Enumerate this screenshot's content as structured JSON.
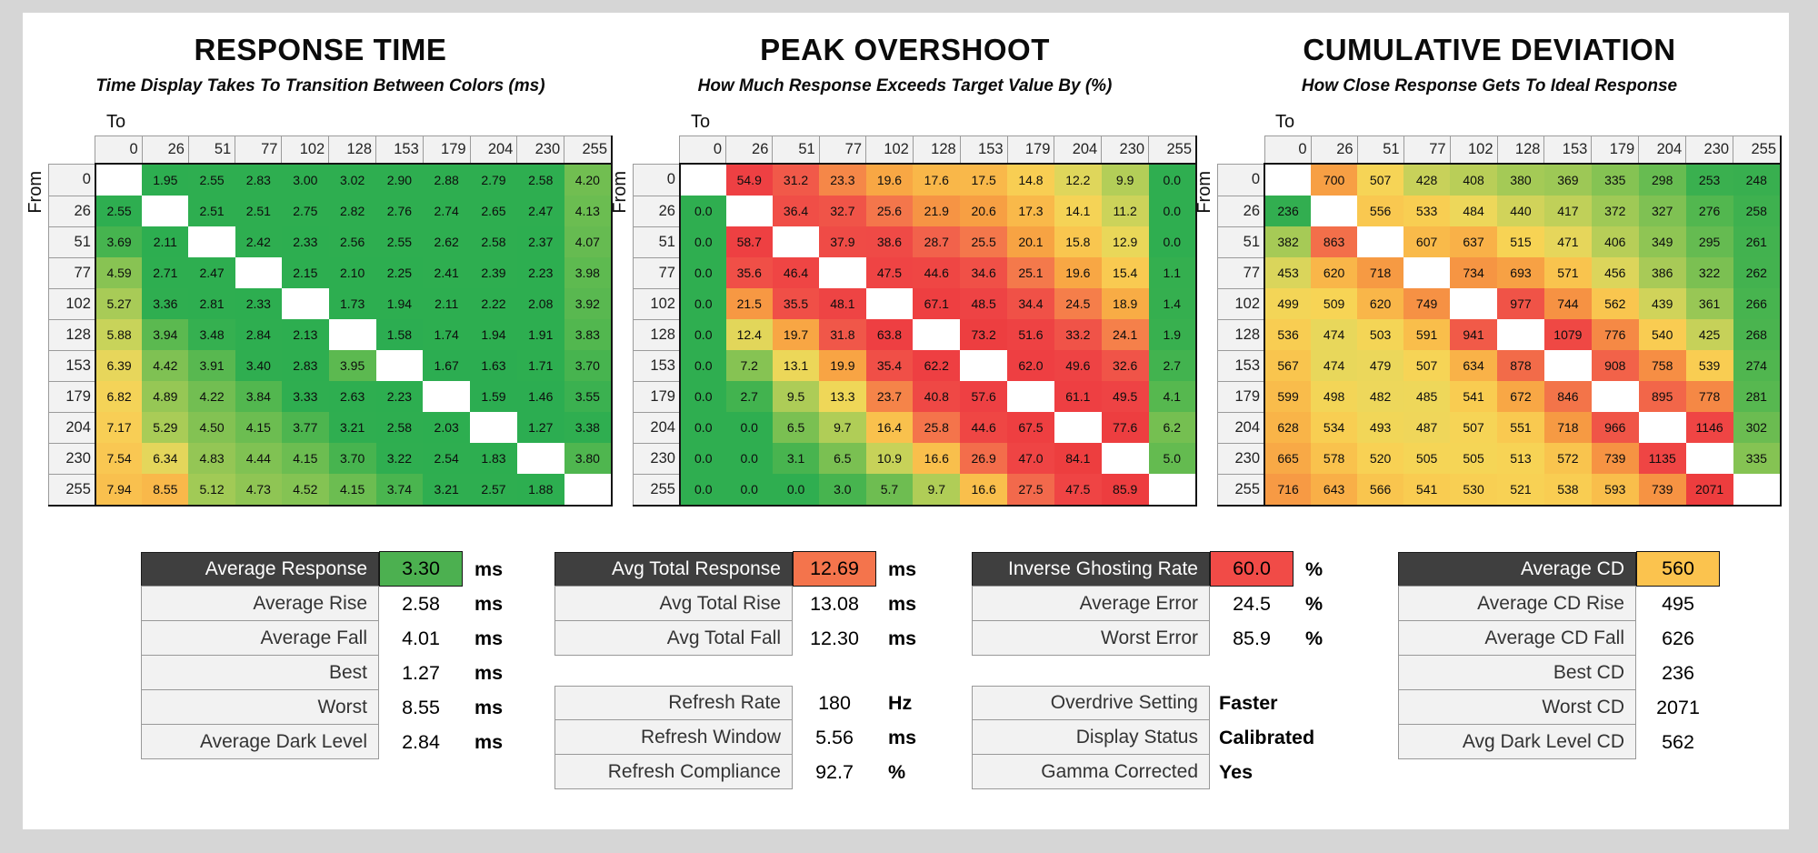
{
  "axis": {
    "to_label": "To",
    "from_label": "From"
  },
  "chart_data": [
    {
      "type": "heatmap",
      "title": "RESPONSE TIME",
      "subtitle": "Time Display Takes To Transition Between Colors (ms)",
      "unit": "ms",
      "x_axis_label": "To",
      "y_axis_label": "From",
      "categories": [
        "0",
        "26",
        "51",
        "77",
        "102",
        "128",
        "153",
        "179",
        "204",
        "230",
        "255"
      ],
      "rows": [
        [
          null,
          "1.95",
          "2.55",
          "2.83",
          "3.00",
          "3.02",
          "2.90",
          "2.88",
          "2.79",
          "2.58",
          "4.20"
        ],
        [
          "2.55",
          null,
          "2.51",
          "2.51",
          "2.75",
          "2.82",
          "2.76",
          "2.74",
          "2.65",
          "2.47",
          "4.13"
        ],
        [
          "3.69",
          "2.11",
          null,
          "2.42",
          "2.33",
          "2.56",
          "2.55",
          "2.62",
          "2.58",
          "2.37",
          "4.07"
        ],
        [
          "4.59",
          "2.71",
          "2.47",
          null,
          "2.15",
          "2.10",
          "2.25",
          "2.41",
          "2.39",
          "2.23",
          "3.98"
        ],
        [
          "5.27",
          "3.36",
          "2.81",
          "2.33",
          null,
          "1.73",
          "1.94",
          "2.11",
          "2.22",
          "2.08",
          "3.92"
        ],
        [
          "5.88",
          "3.94",
          "3.48",
          "2.84",
          "2.13",
          null,
          "1.58",
          "1.74",
          "1.94",
          "1.91",
          "3.83"
        ],
        [
          "6.39",
          "4.42",
          "3.91",
          "3.40",
          "2.83",
          "3.95",
          null,
          "1.67",
          "1.63",
          "1.71",
          "3.70"
        ],
        [
          "6.82",
          "4.89",
          "4.22",
          "3.84",
          "3.33",
          "2.63",
          "2.23",
          null,
          "1.59",
          "1.46",
          "3.55"
        ],
        [
          "7.17",
          "5.29",
          "4.50",
          "4.15",
          "3.77",
          "3.21",
          "2.58",
          "2.03",
          null,
          "1.27",
          "3.38"
        ],
        [
          "7.54",
          "6.34",
          "4.83",
          "4.44",
          "4.15",
          "3.70",
          "3.22",
          "2.54",
          "1.83",
          null,
          "3.80"
        ],
        [
          "7.94",
          "8.55",
          "5.12",
          "4.73",
          "4.52",
          "4.15",
          "3.74",
          "3.21",
          "2.57",
          "1.88",
          null
        ]
      ],
      "color_stops": [
        [
          0,
          "#2aad51"
        ],
        [
          3.4,
          "#2fae50"
        ],
        [
          3.8,
          "#4fb64f"
        ],
        [
          4.3,
          "#79c052"
        ],
        [
          4.9,
          "#97c755"
        ],
        [
          5.4,
          "#aecd58"
        ],
        [
          6.0,
          "#cfd45a"
        ],
        [
          6.5,
          "#eed75b"
        ],
        [
          7.0,
          "#f7d156"
        ],
        [
          7.6,
          "#f9c651"
        ],
        [
          8.1,
          "#f9bd4d"
        ],
        [
          8.6,
          "#f9b74a"
        ]
      ]
    },
    {
      "type": "heatmap",
      "title": "PEAK OVERSHOOT",
      "subtitle": "How Much Response Exceeds Target Value By (%)",
      "unit": "%",
      "x_axis_label": "To",
      "y_axis_label": "From",
      "categories": [
        "0",
        "26",
        "51",
        "77",
        "102",
        "128",
        "153",
        "179",
        "204",
        "230",
        "255"
      ],
      "rows": [
        [
          null,
          "54.9",
          "31.2",
          "23.3",
          "19.6",
          "17.6",
          "17.5",
          "14.8",
          "12.2",
          "9.9",
          "0.0"
        ],
        [
          "0.0",
          null,
          "36.4",
          "32.7",
          "25.6",
          "21.9",
          "20.6",
          "17.3",
          "14.1",
          "11.2",
          "0.0"
        ],
        [
          "0.0",
          "58.7",
          null,
          "37.9",
          "38.6",
          "28.7",
          "25.5",
          "20.1",
          "15.8",
          "12.9",
          "0.0"
        ],
        [
          "0.0",
          "35.6",
          "46.4",
          null,
          "47.5",
          "44.6",
          "34.6",
          "25.1",
          "19.6",
          "15.4",
          "1.1"
        ],
        [
          "0.0",
          "21.5",
          "35.5",
          "48.1",
          null,
          "67.1",
          "48.5",
          "34.4",
          "24.5",
          "18.9",
          "1.4"
        ],
        [
          "0.0",
          "12.4",
          "19.7",
          "31.8",
          "63.8",
          null,
          "73.2",
          "51.6",
          "33.2",
          "24.1",
          "1.9"
        ],
        [
          "0.0",
          "7.2",
          "13.1",
          "19.9",
          "35.4",
          "62.2",
          null,
          "62.0",
          "49.6",
          "32.6",
          "2.7"
        ],
        [
          "0.0",
          "2.7",
          "9.5",
          "13.3",
          "23.7",
          "40.8",
          "57.6",
          null,
          "61.1",
          "49.5",
          "4.1"
        ],
        [
          "0.0",
          "0.0",
          "6.5",
          "9.7",
          "16.4",
          "25.8",
          "44.6",
          "67.5",
          null,
          "77.6",
          "6.2"
        ],
        [
          "0.0",
          "0.0",
          "3.1",
          "6.5",
          "10.9",
          "16.6",
          "26.9",
          "47.0",
          "84.1",
          null,
          "5.0"
        ],
        [
          "0.0",
          "0.0",
          "0.0",
          "3.0",
          "5.7",
          "9.7",
          "16.6",
          "27.5",
          "47.5",
          "85.9",
          null
        ]
      ],
      "color_stops": [
        [
          0,
          "#2fae50"
        ],
        [
          2,
          "#38b04f"
        ],
        [
          4,
          "#55b84f"
        ],
        [
          6,
          "#72be51"
        ],
        [
          8,
          "#93c654"
        ],
        [
          10,
          "#b5ce58"
        ],
        [
          12,
          "#dcd65b"
        ],
        [
          13.5,
          "#f2d758"
        ],
        [
          15,
          "#f9cd52"
        ],
        [
          17,
          "#f9bc4b"
        ],
        [
          19,
          "#f8ab45"
        ],
        [
          21,
          "#f79c42"
        ],
        [
          24,
          "#f5814a"
        ],
        [
          28,
          "#f2654c"
        ],
        [
          33,
          "#f05348"
        ],
        [
          40,
          "#ef4845"
        ],
        [
          55,
          "#ee4043"
        ],
        [
          90,
          "#ed3d3e"
        ]
      ]
    },
    {
      "type": "heatmap",
      "title": "CUMULATIVE DEVIATION",
      "subtitle": "How Close Response Gets To Ideal Response",
      "unit": "",
      "x_axis_label": "To",
      "y_axis_label": "From",
      "categories": [
        "0",
        "26",
        "51",
        "77",
        "102",
        "128",
        "153",
        "179",
        "204",
        "230",
        "255"
      ],
      "rows": [
        [
          null,
          "700",
          "507",
          "428",
          "408",
          "380",
          "369",
          "335",
          "298",
          "253",
          "248"
        ],
        [
          "236",
          null,
          "556",
          "533",
          "484",
          "440",
          "417",
          "372",
          "327",
          "276",
          "258"
        ],
        [
          "382",
          "863",
          null,
          "607",
          "637",
          "515",
          "471",
          "406",
          "349",
          "295",
          "261"
        ],
        [
          "453",
          "620",
          "718",
          null,
          "734",
          "693",
          "571",
          "456",
          "386",
          "322",
          "262"
        ],
        [
          "499",
          "509",
          "620",
          "749",
          null,
          "977",
          "744",
          "562",
          "439",
          "361",
          "266"
        ],
        [
          "536",
          "474",
          "503",
          "591",
          "941",
          null,
          "1079",
          "776",
          "540",
          "425",
          "268"
        ],
        [
          "567",
          "474",
          "479",
          "507",
          "634",
          "878",
          null,
          "908",
          "758",
          "539",
          "274"
        ],
        [
          "599",
          "498",
          "482",
          "485",
          "541",
          "672",
          "846",
          null,
          "895",
          "778",
          "281"
        ],
        [
          "628",
          "534",
          "493",
          "487",
          "507",
          "551",
          "718",
          "966",
          null,
          "1146",
          "302"
        ],
        [
          "665",
          "578",
          "520",
          "505",
          "505",
          "513",
          "572",
          "739",
          "1135",
          null,
          "335"
        ],
        [
          "716",
          "643",
          "566",
          "541",
          "530",
          "521",
          "538",
          "593",
          "739",
          "2071",
          null
        ]
      ],
      "color_stops": [
        [
          230,
          "#2fae50"
        ],
        [
          255,
          "#3bb04f"
        ],
        [
          270,
          "#4cb54f"
        ],
        [
          290,
          "#60ba50"
        ],
        [
          310,
          "#72be52"
        ],
        [
          335,
          "#85c353"
        ],
        [
          360,
          "#97c755"
        ],
        [
          390,
          "#abcb57"
        ],
        [
          420,
          "#c2d059"
        ],
        [
          450,
          "#d8d55b"
        ],
        [
          480,
          "#ecd75b"
        ],
        [
          510,
          "#f7d455"
        ],
        [
          545,
          "#f9cb51"
        ],
        [
          585,
          "#f9c04c"
        ],
        [
          630,
          "#f9b348"
        ],
        [
          680,
          "#f8a545"
        ],
        [
          730,
          "#f69643"
        ],
        [
          790,
          "#f58545"
        ],
        [
          860,
          "#f3704a"
        ],
        [
          930,
          "#f15c48"
        ],
        [
          1000,
          "#f04e46"
        ],
        [
          1100,
          "#ef4644"
        ],
        [
          1300,
          "#ee4042"
        ],
        [
          2100,
          "#ed3d3e"
        ]
      ]
    }
  ],
  "summary_tables": [
    {
      "blocks": [
        {
          "rows": [
            {
              "label": "Average Response",
              "value": "3.30",
              "unit": "ms",
              "header": true,
              "value_bg": "#4cb050"
            },
            {
              "label": "Average Rise",
              "value": "2.58",
              "unit": "ms"
            },
            {
              "label": "Average Fall",
              "value": "4.01",
              "unit": "ms"
            },
            {
              "label": "Best",
              "value": "1.27",
              "unit": "ms"
            },
            {
              "label": "Worst",
              "value": "8.55",
              "unit": "ms"
            },
            {
              "label": "Average Dark Level",
              "value": "2.84",
              "unit": "ms"
            }
          ]
        }
      ]
    },
    {
      "blocks": [
        {
          "rows": [
            {
              "label": "Avg Total Response",
              "value": "12.69",
              "unit": "ms",
              "header": true,
              "value_bg": "#f4744c"
            },
            {
              "label": "Avg Total Rise",
              "value": "13.08",
              "unit": "ms"
            },
            {
              "label": "Avg Total Fall",
              "value": "12.30",
              "unit": "ms"
            }
          ]
        },
        {
          "rows": [
            {
              "label": "Refresh Rate",
              "value": "180",
              "unit": "Hz"
            },
            {
              "label": "Refresh Window",
              "value": "5.56",
              "unit": "ms"
            },
            {
              "label": "Refresh Compliance",
              "value": "92.7",
              "unit": "%"
            }
          ]
        }
      ]
    },
    {
      "blocks": [
        {
          "rows": [
            {
              "label": "Inverse Ghosting Rate",
              "value": "60.0",
              "unit": "%",
              "header": true,
              "value_bg": "#f14b47"
            },
            {
              "label": "Average Error",
              "value": "24.5",
              "unit": "%"
            },
            {
              "label": "Worst Error",
              "value": "85.9",
              "unit": "%"
            }
          ]
        },
        {
          "rows": [
            {
              "label": "Overdrive Setting",
              "value": "Faster",
              "unit": ""
            },
            {
              "label": "Display Status",
              "value": "Calibrated",
              "unit": ""
            },
            {
              "label": "Gamma Corrected",
              "value": "Yes",
              "unit": ""
            }
          ]
        }
      ]
    },
    {
      "blocks": [
        {
          "rows": [
            {
              "label": "Average CD",
              "value": "560",
              "unit": "",
              "header": true,
              "value_bg": "#fbc34e"
            },
            {
              "label": "Average CD Rise",
              "value": "495",
              "unit": ""
            },
            {
              "label": "Average CD Fall",
              "value": "626",
              "unit": ""
            },
            {
              "label": "Best CD",
              "value": "236",
              "unit": ""
            },
            {
              "label": "Worst CD",
              "value": "2071",
              "unit": ""
            },
            {
              "label": "Avg Dark Level CD",
              "value": "562",
              "unit": ""
            }
          ]
        }
      ]
    }
  ]
}
